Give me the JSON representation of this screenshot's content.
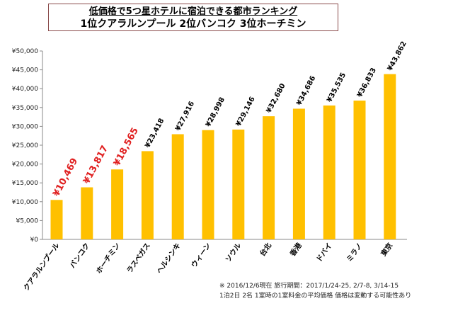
{
  "title": {
    "line1": "低価格で5つ星ホテルに宿泊できる都市ランキング",
    "line2": "1位クアラルンプール 2位バンコク 3位ホーチミン"
  },
  "notes": {
    "line1": "※ 2016/12/6現在 旅行期間：2017/1/24-25, 2/7-8, 3/14-15",
    "line2": "1泊2日 2名 1室時の1室料金の平均価格 価格は変動する可能性あり"
  },
  "chart_data": {
    "type": "bar",
    "categories": [
      "クアラルンプール",
      "バンコク",
      "ホーチミン",
      "ラスベガス",
      "ヘルシンキ",
      "ウィーン",
      "ソウル",
      "台北",
      "香港",
      "ドバイ",
      "ミラノ",
      "東京"
    ],
    "values": [
      10469,
      13817,
      18565,
      23418,
      27916,
      28998,
      29146,
      32680,
      34686,
      35535,
      36833,
      43862
    ],
    "value_labels": [
      "¥10,469",
      "¥13,817",
      "¥18,565",
      "¥23,418",
      "¥27,916",
      "¥28,998",
      "¥29,146",
      "¥32,680",
      "¥34,686",
      "¥35,535",
      "¥36,833",
      "¥43,862"
    ],
    "highlight_count": 3,
    "yticks": [
      "¥0",
      "¥5,000",
      "¥10,000",
      "¥15,000",
      "¥20,000",
      "¥25,000",
      "¥30,000",
      "¥35,000",
      "¥40,000",
      "¥45,000",
      "¥50,000"
    ],
    "ylim": [
      0,
      50000
    ],
    "bar_color": "#FFC000",
    "highlight_label_color": "#E02020",
    "label_color": "#000000",
    "grid": false,
    "xlabel": "",
    "ylabel": ""
  }
}
